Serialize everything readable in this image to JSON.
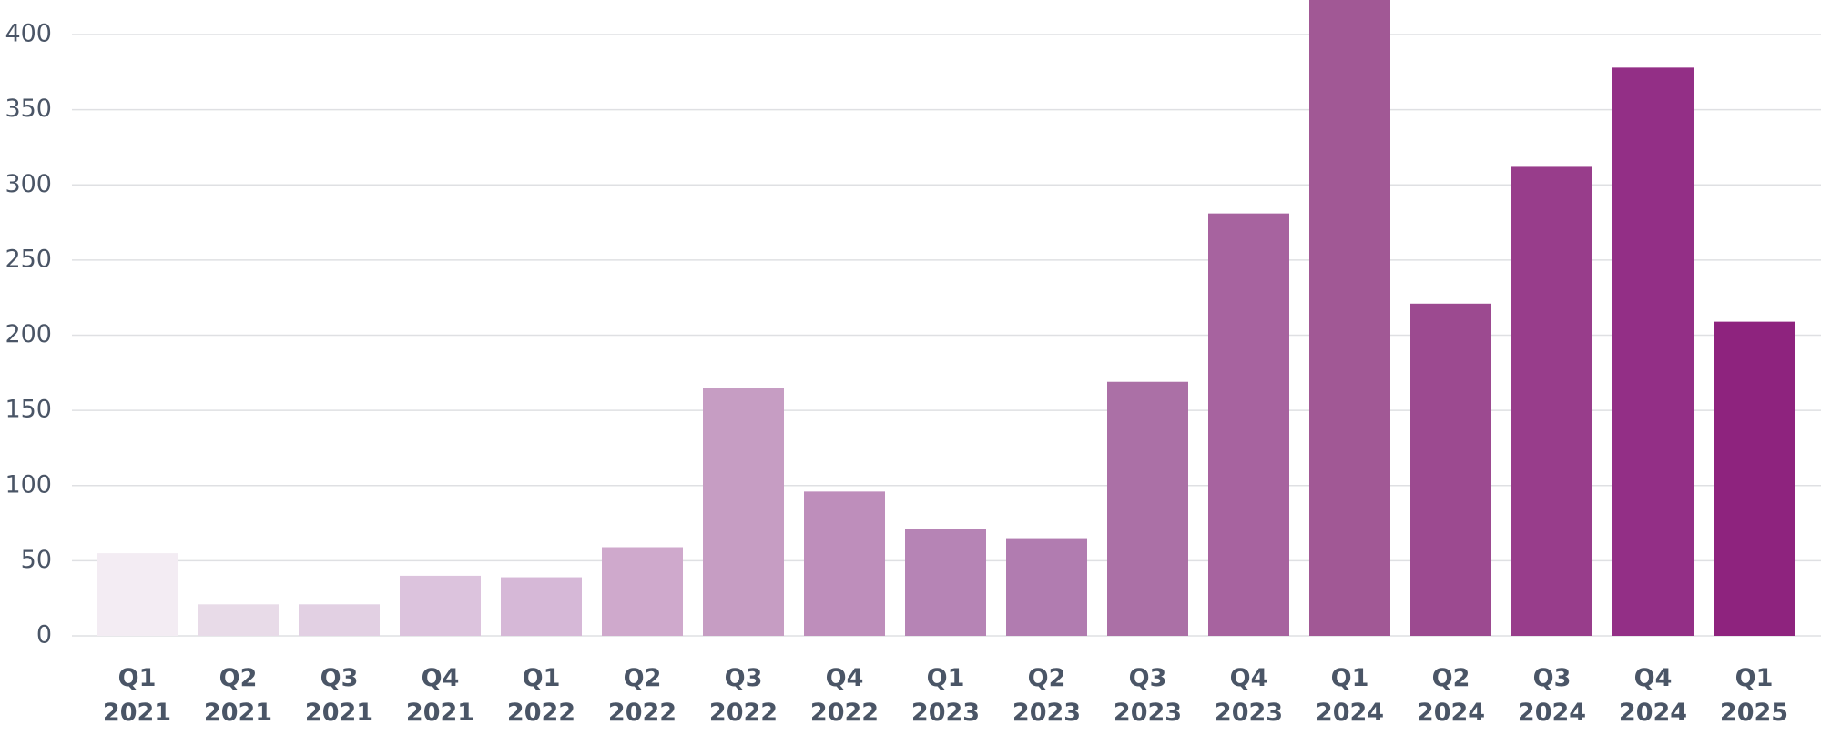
{
  "chart_data": {
    "type": "bar",
    "categories": [
      "Q1 2021",
      "Q2 2021",
      "Q3 2021",
      "Q4 2021",
      "Q1 2022",
      "Q2 2022",
      "Q3 2022",
      "Q4 2022",
      "Q1 2023",
      "Q2 2023",
      "Q3 2023",
      "Q4 2023",
      "Q1 2024",
      "Q2 2024",
      "Q3 2024",
      "Q4 2024",
      "Q1 2025"
    ],
    "values": [
      55,
      21,
      21,
      40,
      39,
      59,
      165,
      96,
      71,
      65,
      169,
      281,
      425,
      221,
      312,
      378,
      209
    ],
    "colors": [
      "#f3ecf3",
      "#e8dbe8",
      "#e2d0e3",
      "#dcc3dd",
      "#d6b8d7",
      "#cfa9cc",
      "#c69dc3",
      "#be8ebb",
      "#b684b5",
      "#b17cb0",
      "#ab70a6",
      "#a7639f",
      "#a15895",
      "#9c4a90",
      "#983d8b",
      "#932f86",
      "#8e237e"
    ],
    "ylim": [
      0,
      423
    ],
    "yticks": [
      0,
      50,
      100,
      150,
      200,
      250,
      300,
      350,
      400
    ],
    "grid": true
  }
}
